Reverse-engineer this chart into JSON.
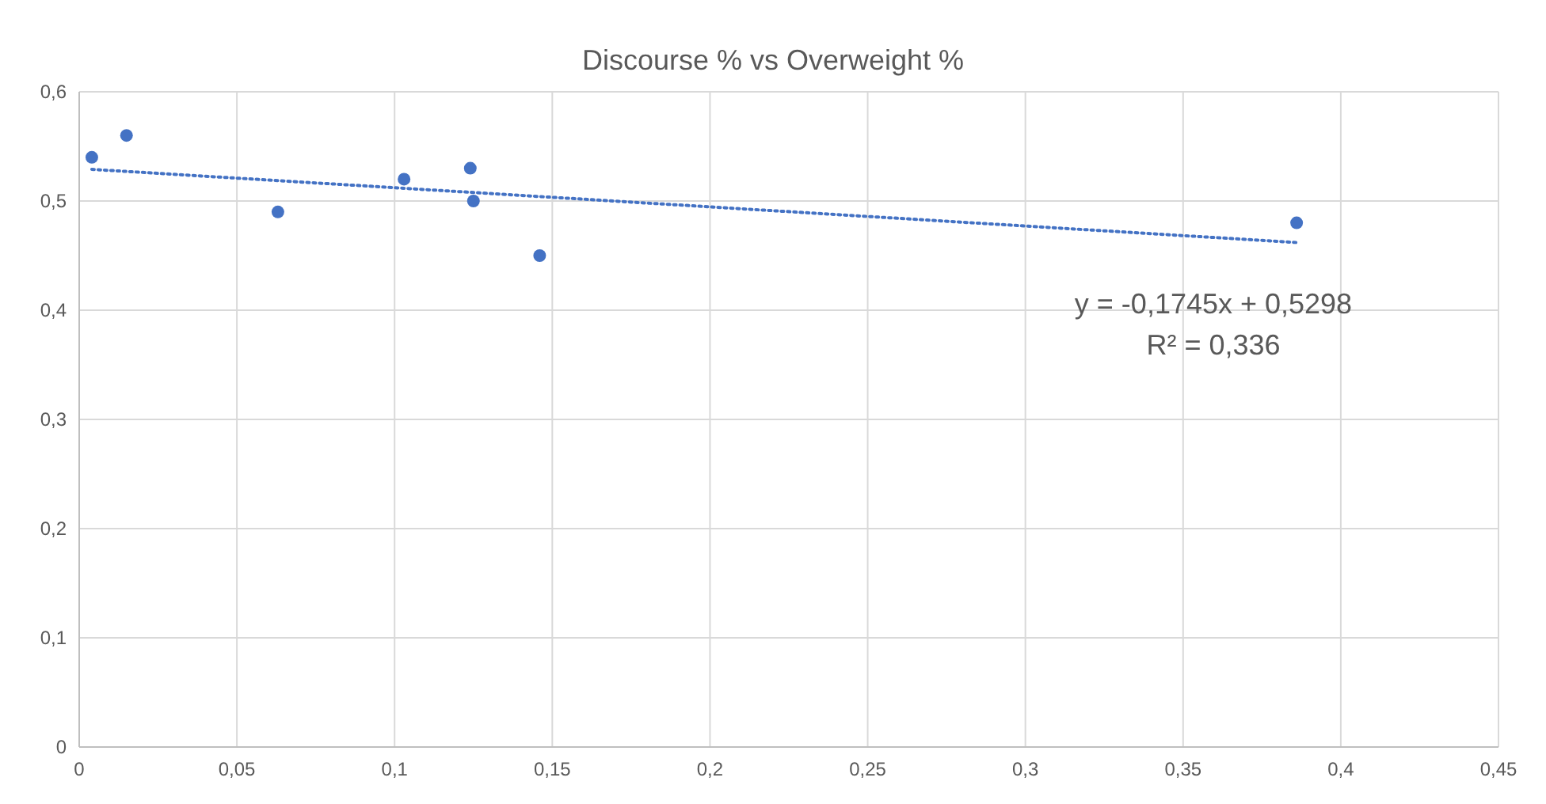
{
  "chart_data": {
    "type": "scatter",
    "title": "Discourse % vs Overweight %",
    "xlim": [
      0,
      0.45
    ],
    "xticks": [
      {
        "value": 0,
        "label": "0"
      },
      {
        "value": 0.05,
        "label": "0,05"
      },
      {
        "value": 0.1,
        "label": "0,1"
      },
      {
        "value": 0.15,
        "label": "0,15"
      },
      {
        "value": 0.2,
        "label": "0,2"
      },
      {
        "value": 0.25,
        "label": "0,25"
      },
      {
        "value": 0.3,
        "label": "0,3"
      },
      {
        "value": 0.35,
        "label": "0,35"
      },
      {
        "value": 0.4,
        "label": "0,4"
      },
      {
        "value": 0.45,
        "label": "0,45"
      }
    ],
    "ylim": [
      0,
      0.6
    ],
    "yticks": [
      {
        "value": 0,
        "label": "0"
      },
      {
        "value": 0.1,
        "label": "0,1"
      },
      {
        "value": 0.2,
        "label": "0,2"
      },
      {
        "value": 0.3,
        "label": "0,3"
      },
      {
        "value": 0.4,
        "label": "0,4"
      },
      {
        "value": 0.5,
        "label": "0,5"
      },
      {
        "value": 0.6,
        "label": "0,6"
      }
    ],
    "grid": true,
    "series": [
      {
        "type": "scatter",
        "marker": "circle",
        "color": "#4472c4",
        "x": [
          0.004,
          0.015,
          0.063,
          0.103,
          0.124,
          0.125,
          0.146,
          0.386
        ],
        "values": [
          0.54,
          0.56,
          0.49,
          0.52,
          0.53,
          0.5,
          0.45,
          0.48
        ]
      },
      {
        "type": "line",
        "color": "#4472c4",
        "line_style": "dotted",
        "x": [
          0.004,
          0.386
        ],
        "values": [
          0.529,
          0.462
        ]
      }
    ],
    "annotations": [
      "y = -0,1745x + 0,5298",
      "R² = 0,336"
    ]
  }
}
